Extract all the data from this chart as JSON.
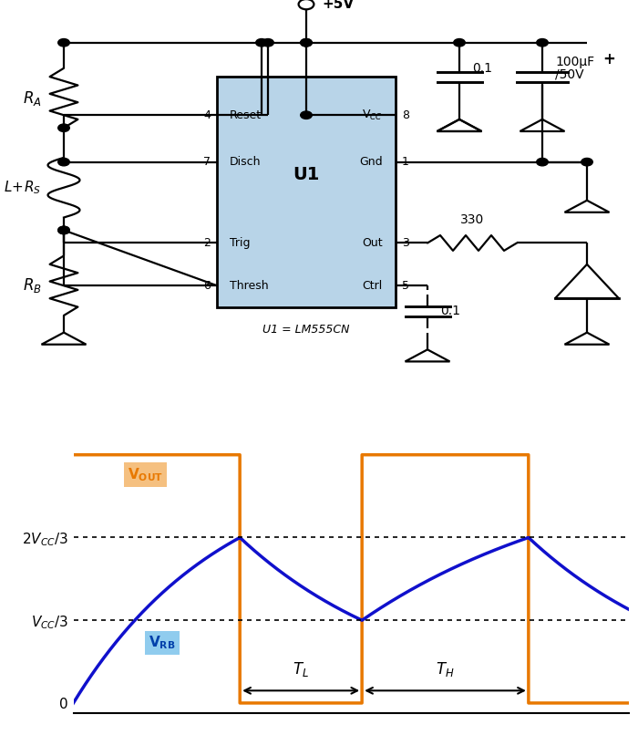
{
  "bg_color": "#ffffff",
  "circuit_color": "#000000",
  "chip_fill": "#b8d4e8",
  "chip_border": "#000000",
  "orange_color": "#E87800",
  "blue_color": "#1010CC",
  "vcc_label": "+5V",
  "u1_label": "U1",
  "u1_eq": "U1 = LM555CN",
  "cap1_label": "0.1",
  "cap2_label": "100μF",
  "cap2b_label": "/50V",
  "cap3_label": "0.1",
  "res_label": "330",
  "pin_labels_left": [
    "Reset",
    "Disch",
    "",
    "Trig",
    "Thresh"
  ],
  "pin_labels_right": [
    "V_CC",
    "Gnd",
    "",
    "Out",
    "Ctrl"
  ],
  "pin_nums_left": [
    "4",
    "7",
    "",
    "2",
    "6"
  ],
  "pin_nums_right": [
    "8",
    "1",
    "",
    "3",
    "5"
  ],
  "vout_label": "V_{OUT}",
  "vrb_label": "V_{RB}",
  "tl_label": "T_L",
  "th_label": "T_H",
  "y2vcc3_label": "2V_{CC}/3",
  "yvcc3_label": "V_{CC}/3",
  "y0_label": "0"
}
